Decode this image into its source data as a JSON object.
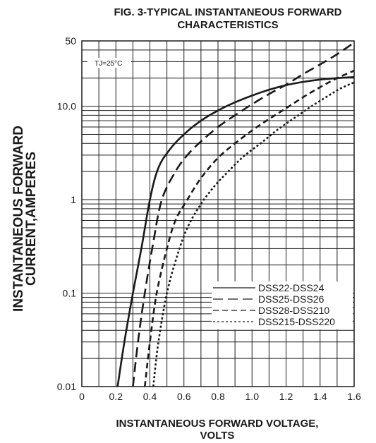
{
  "chart_data": {
    "type": "line",
    "title_line1": "FIG. 3-TYPICAL INSTANTANEOUS FORWARD",
    "title_line2": "CHARACTERISTICS",
    "ylabel_line1": "INSTANTANEOUS FORWARD",
    "ylabel_line2": "CURRENT,AMPERES",
    "xlabel_line1": "INSTANTANEOUS FORWARD VOLTAGE,",
    "xlabel_line2": "VOLTS",
    "annotation": "TJ=25°C",
    "y_scale": "log",
    "xlim": [
      0,
      1.6
    ],
    "ylim": [
      0.01,
      50
    ],
    "x_ticks": [
      "0",
      "0.2",
      "0.4",
      "0.6",
      "0.8",
      "1.0",
      "1.2",
      "1.4",
      "1.6"
    ],
    "y_ticks": [
      {
        "value": 50,
        "label": "50"
      },
      {
        "value": 10,
        "label": "10.0"
      },
      {
        "value": 1,
        "label": "1"
      },
      {
        "value": 0.1,
        "label": "0.1"
      },
      {
        "value": 0.01,
        "label": "0.01"
      }
    ],
    "grid": true,
    "legend_position": "bottom-right",
    "series": [
      {
        "name": "DSS22-DSS24",
        "dash": "solid",
        "points": [
          [
            0.21,
            0.01
          ],
          [
            0.25,
            0.03
          ],
          [
            0.3,
            0.1
          ],
          [
            0.35,
            0.3
          ],
          [
            0.4,
            1.0
          ],
          [
            0.45,
            2.2
          ],
          [
            0.52,
            3.5
          ],
          [
            0.6,
            5.0
          ],
          [
            0.7,
            7.0
          ],
          [
            0.8,
            9.0
          ],
          [
            0.9,
            11.0
          ],
          [
            1.0,
            13.0
          ],
          [
            1.1,
            15.0
          ],
          [
            1.2,
            16.8
          ],
          [
            1.3,
            18.2
          ],
          [
            1.4,
            19.3
          ],
          [
            1.5,
            20.0
          ],
          [
            1.6,
            20.5
          ]
        ]
      },
      {
        "name": "DSS25-DSS26",
        "dash": "long-dash",
        "points": [
          [
            0.3,
            0.01
          ],
          [
            0.33,
            0.03
          ],
          [
            0.37,
            0.1
          ],
          [
            0.42,
            0.35
          ],
          [
            0.47,
            1.0
          ],
          [
            0.55,
            2.0
          ],
          [
            0.62,
            3.0
          ],
          [
            0.7,
            4.2
          ],
          [
            0.8,
            6.0
          ],
          [
            0.9,
            8.0
          ],
          [
            1.0,
            10.5
          ],
          [
            1.1,
            13.5
          ],
          [
            1.2,
            17.0
          ],
          [
            1.3,
            22.0
          ],
          [
            1.4,
            28.0
          ],
          [
            1.5,
            36.0
          ],
          [
            1.6,
            48.0
          ]
        ]
      },
      {
        "name": "DSS28-DSS210",
        "dash": "short-dash",
        "points": [
          [
            0.37,
            0.01
          ],
          [
            0.4,
            0.03
          ],
          [
            0.44,
            0.1
          ],
          [
            0.5,
            0.3
          ],
          [
            0.55,
            0.6
          ],
          [
            0.62,
            1.0
          ],
          [
            0.7,
            1.7
          ],
          [
            0.8,
            2.8
          ],
          [
            0.9,
            4.0
          ],
          [
            1.0,
            5.5
          ],
          [
            1.1,
            7.3
          ],
          [
            1.2,
            9.5
          ],
          [
            1.3,
            12.5
          ],
          [
            1.4,
            16.0
          ],
          [
            1.5,
            20.0
          ],
          [
            1.6,
            24.0
          ]
        ]
      },
      {
        "name": "DSS215-DSS220",
        "dash": "dotted",
        "points": [
          [
            0.42,
            0.01
          ],
          [
            0.45,
            0.03
          ],
          [
            0.5,
            0.1
          ],
          [
            0.56,
            0.25
          ],
          [
            0.62,
            0.5
          ],
          [
            0.7,
            0.9
          ],
          [
            0.78,
            1.4
          ],
          [
            0.86,
            2.0
          ],
          [
            0.95,
            2.9
          ],
          [
            1.05,
            4.0
          ],
          [
            1.15,
            5.6
          ],
          [
            1.25,
            7.5
          ],
          [
            1.35,
            10.0
          ],
          [
            1.45,
            13.0
          ],
          [
            1.52,
            15.5
          ],
          [
            1.6,
            18.0
          ]
        ]
      }
    ]
  }
}
